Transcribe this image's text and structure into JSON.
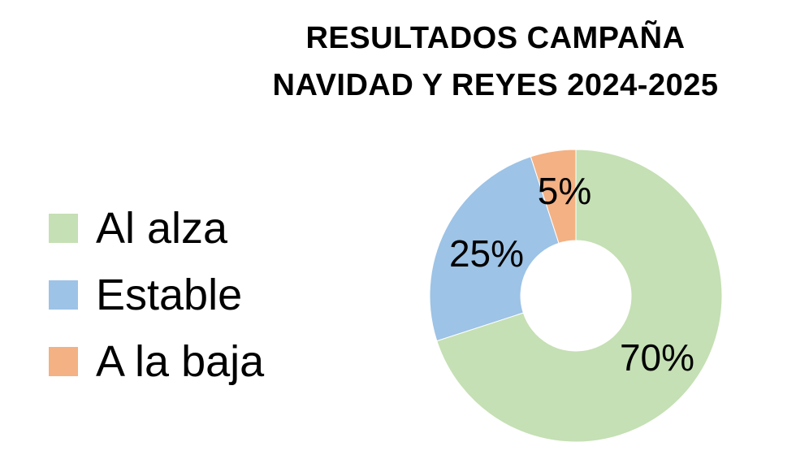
{
  "chart_data": {
    "type": "pie",
    "title_lines": [
      "RESULTADOS CAMPAÑA",
      "NAVIDAD Y REYES 2024-2025"
    ],
    "categories": [
      "Al alza",
      "Estable",
      "A la baja"
    ],
    "values": [
      70,
      25,
      5
    ],
    "value_labels": [
      "70%",
      "25%",
      "5%"
    ],
    "colors": [
      "#c5e0b4",
      "#9dc3e6",
      "#f4b183"
    ],
    "hole": true,
    "legend_position": "left"
  }
}
